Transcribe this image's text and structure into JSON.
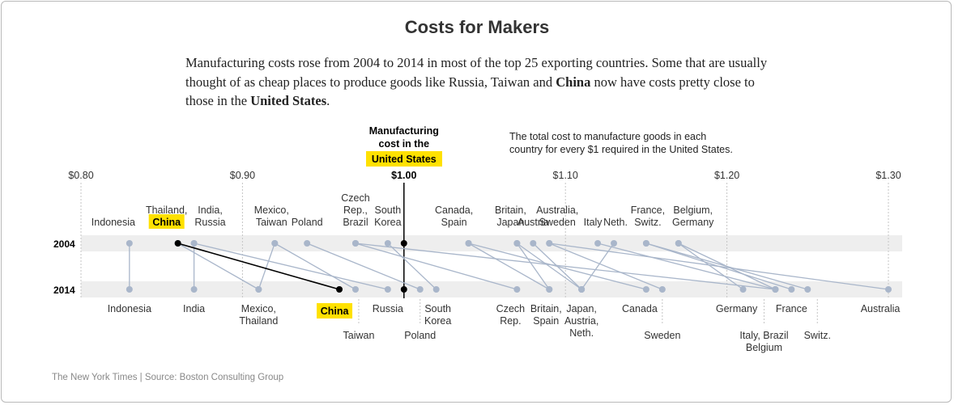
{
  "title": "Costs for Makers",
  "description": {
    "p1": "Manufacturing costs rose from 2004 to 2014 in most of the top 25 exporting countries. Some that are usually thought of as cheap places to produce goods like Russia, Taiwan and ",
    "china": "China",
    "p2": " now have costs pretty close to those in the ",
    "us": "United States",
    "p3": "."
  },
  "footer": "The New York Times | Source: Boston Consulting Group",
  "colors": {
    "highlight": "#ffe100",
    "series_line": "#a9b6ca",
    "dot": "#a9b6ca",
    "band": "#eeeeee",
    "china_line": "#000000",
    "us_line": "#000000"
  },
  "chart_data": {
    "type": "slope",
    "axis": {
      "ticks": [
        0.8,
        0.9,
        1.0,
        1.1,
        1.2,
        1.3
      ],
      "tick_labels": [
        "$0.80",
        "$0.90",
        "$1.00",
        "$1.10",
        "$1.20",
        "$1.30"
      ],
      "range": [
        0.8,
        1.3
      ]
    },
    "rows": [
      "2004",
      "2014"
    ],
    "us_annotation": {
      "line1": "Manufacturing",
      "line2": "cost in the",
      "line3": "United States"
    },
    "note": {
      "line1": "The total cost to manufacture goods in each",
      "line2": "country for every $1 required in the United States."
    },
    "countries": [
      {
        "name": "Indonesia",
        "v2004": 0.83,
        "v2014": 0.83
      },
      {
        "name": "China",
        "v2004": 0.86,
        "v2014": 0.96,
        "highlight": true
      },
      {
        "name": "Thailand",
        "v2004": 0.86,
        "v2014": 0.91
      },
      {
        "name": "India",
        "v2004": 0.87,
        "v2014": 0.87
      },
      {
        "name": "Russia",
        "v2004": 0.87,
        "v2014": 0.99
      },
      {
        "name": "Mexico",
        "v2004": 0.92,
        "v2014": 0.91
      },
      {
        "name": "Taiwan",
        "v2004": 0.92,
        "v2014": 0.97
      },
      {
        "name": "Poland",
        "v2004": 0.94,
        "v2014": 1.01
      },
      {
        "name": "Czech Rep.",
        "v2004": 0.97,
        "v2014": 1.07
      },
      {
        "name": "Brazil",
        "v2004": 0.97,
        "v2014": 1.23
      },
      {
        "name": "South Korea",
        "v2004": 0.99,
        "v2014": 1.02
      },
      {
        "name": "United States",
        "v2004": 1.0,
        "v2014": 1.0,
        "highlight": true
      },
      {
        "name": "Canada",
        "v2004": 1.04,
        "v2014": 1.15
      },
      {
        "name": "Spain",
        "v2004": 1.04,
        "v2014": 1.09
      },
      {
        "name": "Britain",
        "v2004": 1.07,
        "v2014": 1.09
      },
      {
        "name": "Japan",
        "v2004": 1.07,
        "v2014": 1.11
      },
      {
        "name": "Austria",
        "v2004": 1.08,
        "v2014": 1.11
      },
      {
        "name": "Australia",
        "v2004": 1.09,
        "v2014": 1.3
      },
      {
        "name": "Sweden",
        "v2004": 1.09,
        "v2014": 1.16
      },
      {
        "name": "Italy",
        "v2004": 1.12,
        "v2014": 1.23
      },
      {
        "name": "Neth.",
        "v2004": 1.13,
        "v2014": 1.11
      },
      {
        "name": "France",
        "v2004": 1.15,
        "v2014": 1.24
      },
      {
        "name": "Switz.",
        "v2004": 1.15,
        "v2014": 1.25
      },
      {
        "name": "Belgium",
        "v2004": 1.17,
        "v2014": 1.23
      },
      {
        "name": "Germany",
        "v2004": 1.17,
        "v2014": 1.21
      }
    ],
    "labels_2004": [
      {
        "lines": [
          "Indonesia"
        ],
        "x": 0.82
      },
      {
        "lines": [
          "Thailand,"
        ],
        "x": 0.853,
        "china_box": true
      },
      {
        "lines": [
          "India,",
          "Russia"
        ],
        "x": 0.88
      },
      {
        "lines": [
          "Mexico,",
          "Taiwan"
        ],
        "x": 0.918
      },
      {
        "lines": [
          "Poland"
        ],
        "x": 0.94
      },
      {
        "lines": [
          "Czech",
          "Rep.,",
          "Brazil"
        ],
        "x": 0.97
      },
      {
        "lines": [
          "South",
          "Korea"
        ],
        "x": 0.99
      },
      {
        "lines": [
          "Canada,",
          "Spain"
        ],
        "x": 1.031
      },
      {
        "lines": [
          "Britain,",
          "Japan"
        ],
        "x": 1.066
      },
      {
        "lines": [
          "Austria"
        ],
        "x": 1.08
      },
      {
        "lines": [
          "Australia,",
          "Sweden"
        ],
        "x": 1.095
      },
      {
        "lines": [
          "Italy"
        ],
        "x": 1.117
      },
      {
        "lines": [
          "Neth."
        ],
        "x": 1.131
      },
      {
        "lines": [
          "France,",
          "Switz."
        ],
        "x": 1.151
      },
      {
        "lines": [
          "Belgium,",
          "Germany"
        ],
        "x": 1.179
      }
    ],
    "labels_2014": [
      {
        "lines": [
          "Indonesia"
        ],
        "x": 0.83
      },
      {
        "lines": [
          "India"
        ],
        "x": 0.87
      },
      {
        "lines": [
          "Mexico,",
          "Thailand"
        ],
        "x": 0.91
      },
      {
        "lines": [
          "China"
        ],
        "x": 0.957,
        "china_box": true
      },
      {
        "lines": [
          "Russia"
        ],
        "x": 0.99
      },
      {
        "lines": [
          "South",
          "Korea"
        ],
        "x": 1.021
      },
      {
        "lines": [
          "Czech",
          "Rep."
        ],
        "x": 1.066
      },
      {
        "lines": [
          "Britain,",
          "Spain"
        ],
        "x": 1.088
      },
      {
        "lines": [
          "Japan,",
          "Austria,",
          "Neth."
        ],
        "x": 1.11
      },
      {
        "lines": [
          "Canada"
        ],
        "x": 1.146
      },
      {
        "lines": [
          "Germany"
        ],
        "x": 1.206
      },
      {
        "lines": [
          "France"
        ],
        "x": 1.24
      },
      {
        "lines": [
          "Australia"
        ],
        "x": 1.295
      },
      {
        "lines": [
          "Taiwan"
        ],
        "x": 0.972,
        "drop": true
      },
      {
        "lines": [
          "Poland"
        ],
        "x": 1.01,
        "drop": true
      },
      {
        "lines": [
          "Sweden"
        ],
        "x": 1.16,
        "drop": true
      },
      {
        "lines": [
          "Italy, Brazil",
          "Belgium"
        ],
        "x": 1.223,
        "drop": true
      },
      {
        "lines": [
          "Switz."
        ],
        "x": 1.256,
        "drop": true
      }
    ]
  }
}
